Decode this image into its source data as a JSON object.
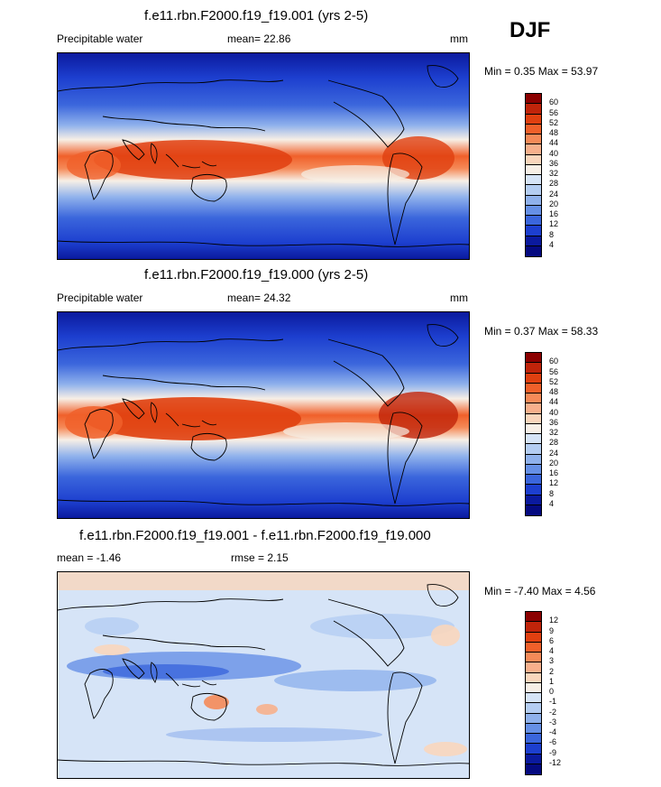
{
  "season": "DJF",
  "panels": [
    {
      "title": "f.e11.rbn.F2000.f19_f19.001 (yrs 2-5)",
      "left_label": "Precipitable water",
      "mean_label": "mean=",
      "mean_value": "22.86",
      "units": "mm",
      "min_label": "Min =",
      "min_value": "0.35",
      "max_label": "Max =",
      "max_value": "53.97",
      "colorbar": {
        "levels": [
          "60",
          "56",
          "52",
          "48",
          "44",
          "40",
          "36",
          "32",
          "28",
          "24",
          "20",
          "16",
          "12",
          "8",
          "4"
        ],
        "colors": [
          "#8b0000",
          "#c0240a",
          "#e04010",
          "#f0602a",
          "#f58a58",
          "#f7b08c",
          "#f9d6bc",
          "#f7efe6",
          "#d6e4f7",
          "#b4cdf2",
          "#8fb1ec",
          "#6690e6",
          "#3b66dc",
          "#1d3fcf",
          "#0b1a9e",
          "#050a80"
        ]
      }
    },
    {
      "title": "f.e11.rbn.F2000.f19_f19.000 (yrs 2-5)",
      "left_label": "Precipitable water",
      "mean_label": "mean=",
      "mean_value": "24.32",
      "units": "mm",
      "min_label": "Min =",
      "min_value": "0.37",
      "max_label": "Max =",
      "max_value": "58.33",
      "colorbar": {
        "levels": [
          "60",
          "56",
          "52",
          "48",
          "44",
          "40",
          "36",
          "32",
          "28",
          "24",
          "20",
          "16",
          "12",
          "8",
          "4"
        ],
        "colors": [
          "#8b0000",
          "#c0240a",
          "#e04010",
          "#f0602a",
          "#f58a58",
          "#f7b08c",
          "#f9d6bc",
          "#f7efe6",
          "#d6e4f7",
          "#b4cdf2",
          "#8fb1ec",
          "#6690e6",
          "#3b66dc",
          "#1d3fcf",
          "#0b1a9e",
          "#050a80"
        ]
      }
    },
    {
      "title": "f.e11.rbn.F2000.f19_f19.001 - f.e11.rbn.F2000.f19_f19.000",
      "mean_label": "mean =",
      "mean_value": "-1.46",
      "rmse_label": "rmse =",
      "rmse_value": "2.15",
      "min_label": "Min =",
      "min_value": "-7.40",
      "max_label": "Max =",
      "max_value": "4.56",
      "colorbar": {
        "levels": [
          "12",
          "9",
          "6",
          "4",
          "3",
          "2",
          "1",
          "0",
          "-1",
          "-2",
          "-3",
          "-4",
          "-6",
          "-9",
          "-12"
        ],
        "colors": [
          "#8b0000",
          "#c0240a",
          "#e04010",
          "#f0602a",
          "#f58a58",
          "#f7b08c",
          "#f9d6bc",
          "#f7efe6",
          "#d6e4f7",
          "#b4cdf2",
          "#8fb1ec",
          "#6690e6",
          "#3b66dc",
          "#1d3fcf",
          "#0b1a9e",
          "#050a80"
        ]
      }
    }
  ]
}
